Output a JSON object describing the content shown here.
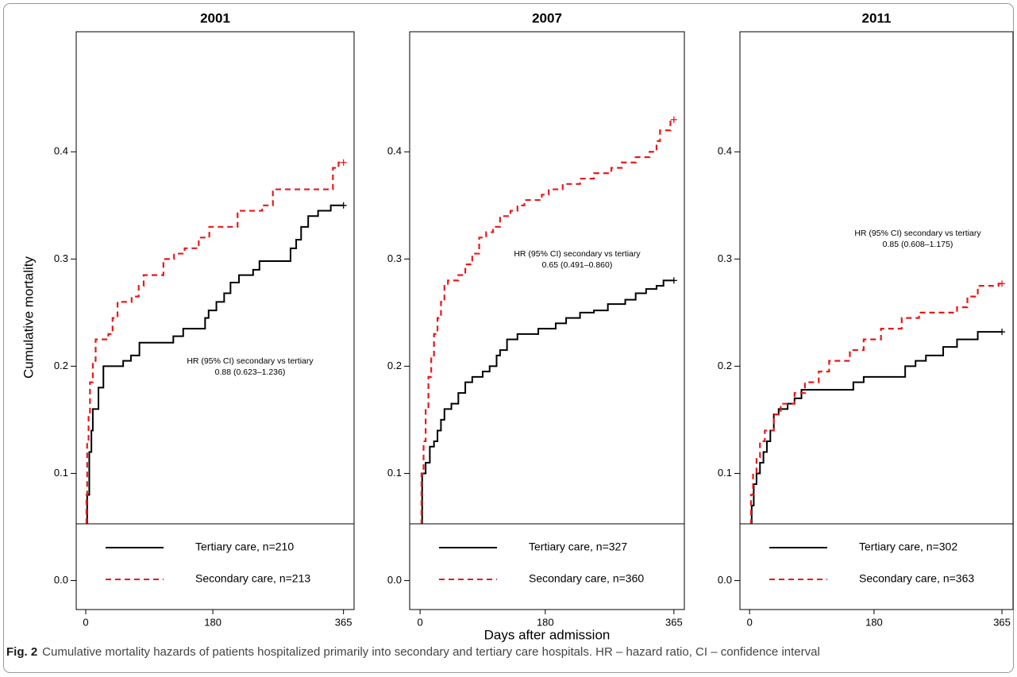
{
  "chart_data": [
    {
      "type": "line",
      "title": "2001",
      "ylabel": "Cumulative mortality",
      "xlim": [
        -13.5,
        380
      ],
      "ylim": [
        -0.027,
        0.512
      ],
      "xticks": [
        0,
        180,
        365
      ],
      "yticks": [
        {
          "value": 0,
          "label": "0.0"
        },
        0.1,
        0.2,
        0.3,
        0.4
      ],
      "annotation": [
        "HR (95% CI) secondary vs tertiary",
        "0.88 (0.623–1.236)"
      ],
      "legend": "bottom",
      "step": true,
      "series": [
        {
          "name": "Tertiary care, n=210",
          "color": "#000000",
          "linestyle": "solid",
          "x": [
            0,
            2,
            5,
            8,
            10,
            18,
            25,
            53,
            64,
            76,
            124,
            138,
            169,
            174,
            185,
            196,
            205,
            217,
            237,
            246,
            290,
            298,
            305,
            315,
            329,
            347,
            365
          ],
          "values": [
            0,
            0.08,
            0.12,
            0.14,
            0.16,
            0.18,
            0.2,
            0.205,
            0.21,
            0.222,
            0.228,
            0.235,
            0.245,
            0.252,
            0.26,
            0.268,
            0.278,
            0.285,
            0.29,
            0.298,
            0.31,
            0.318,
            0.33,
            0.34,
            0.345,
            0.35,
            0.35
          ]
        },
        {
          "name": "Secondary care, n=213",
          "color": "#e8191b",
          "linestyle": "dashed",
          "x": [
            0,
            1,
            2,
            4,
            6,
            10,
            14,
            32,
            38,
            45,
            65,
            75,
            82,
            110,
            125,
            140,
            160,
            175,
            215,
            250,
            265,
            350,
            358,
            365
          ],
          "values": [
            0,
            0.08,
            0.13,
            0.155,
            0.185,
            0.205,
            0.225,
            0.23,
            0.245,
            0.26,
            0.265,
            0.275,
            0.285,
            0.3,
            0.305,
            0.31,
            0.32,
            0.33,
            0.345,
            0.35,
            0.365,
            0.385,
            0.39,
            0.39
          ]
        }
      ]
    },
    {
      "type": "line",
      "title": "2007",
      "xlabel": "Days after admission",
      "xlim": [
        -15,
        380
      ],
      "ylim": [
        -0.027,
        0.512
      ],
      "xticks": [
        0,
        180,
        365
      ],
      "yticks": [
        {
          "value": 0,
          "label": "0.0"
        },
        0.1,
        0.2,
        0.3,
        0.4
      ],
      "annotation": [
        "HR (95% CI) secondary vs tertiary",
        "0.65 (0.491–0.860)"
      ],
      "legend": "bottom",
      "step": true,
      "series": [
        {
          "name": "Tertiary care, n=327",
          "color": "#000000",
          "linestyle": "solid",
          "x": [
            0,
            3,
            8,
            14,
            20,
            25,
            30,
            35,
            45,
            55,
            65,
            75,
            90,
            100,
            110,
            115,
            125,
            140,
            170,
            195,
            210,
            230,
            250,
            270,
            295,
            310,
            325,
            340,
            350,
            365
          ],
          "values": [
            0,
            0.1,
            0.11,
            0.125,
            0.13,
            0.14,
            0.15,
            0.16,
            0.165,
            0.175,
            0.185,
            0.19,
            0.195,
            0.2,
            0.21,
            0.215,
            0.225,
            0.23,
            0.235,
            0.24,
            0.245,
            0.25,
            0.252,
            0.258,
            0.262,
            0.268,
            0.272,
            0.275,
            0.28,
            0.28
          ]
        },
        {
          "name": "Secondary care, n=360",
          "color": "#e8191b",
          "linestyle": "dashed",
          "x": [
            0,
            2,
            5,
            8,
            12,
            16,
            20,
            25,
            30,
            35,
            40,
            55,
            65,
            75,
            85,
            95,
            105,
            115,
            130,
            140,
            150,
            175,
            185,
            205,
            230,
            250,
            275,
            290,
            310,
            330,
            340,
            345,
            360,
            365
          ],
          "values": [
            0,
            0.1,
            0.13,
            0.16,
            0.19,
            0.21,
            0.23,
            0.245,
            0.26,
            0.275,
            0.28,
            0.285,
            0.295,
            0.305,
            0.32,
            0.325,
            0.33,
            0.34,
            0.345,
            0.35,
            0.355,
            0.36,
            0.365,
            0.37,
            0.375,
            0.38,
            0.385,
            0.39,
            0.395,
            0.4,
            0.41,
            0.42,
            0.43,
            0.43
          ]
        }
      ]
    },
    {
      "type": "line",
      "title": "2011",
      "xlim": [
        -14,
        381
      ],
      "ylim": [
        -0.027,
        0.512
      ],
      "xticks": [
        0,
        180,
        365
      ],
      "yticks": [
        {
          "value": 0,
          "label": "0.0"
        },
        0.1,
        0.2,
        0.3,
        0.4
      ],
      "annotation": [
        "HR (95% CI) secondary vs tertiary",
        "0.85 (0.608–1.175)"
      ],
      "legend": "bottom",
      "step": true,
      "series": [
        {
          "name": "Tertiary care, n=302",
          "color": "#000000",
          "linestyle": "solid",
          "x": [
            0,
            3,
            6,
            10,
            15,
            20,
            25,
            30,
            35,
            42,
            55,
            65,
            75,
            150,
            165,
            225,
            240,
            255,
            280,
            300,
            330,
            365
          ],
          "values": [
            0,
            0.07,
            0.09,
            0.1,
            0.11,
            0.12,
            0.13,
            0.14,
            0.155,
            0.16,
            0.165,
            0.17,
            0.178,
            0.185,
            0.19,
            0.2,
            0.205,
            0.21,
            0.218,
            0.225,
            0.232,
            0.232
          ]
        },
        {
          "name": "Secondary care, n=363",
          "color": "#e8191b",
          "linestyle": "dashed",
          "x": [
            0,
            2,
            5,
            10,
            15,
            22,
            35,
            45,
            65,
            80,
            100,
            115,
            145,
            165,
            190,
            220,
            245,
            300,
            315,
            330,
            360,
            365
          ],
          "values": [
            0,
            0.08,
            0.1,
            0.115,
            0.13,
            0.14,
            0.155,
            0.165,
            0.175,
            0.185,
            0.195,
            0.205,
            0.215,
            0.225,
            0.235,
            0.245,
            0.25,
            0.255,
            0.265,
            0.275,
            0.277,
            0.277
          ]
        }
      ]
    }
  ],
  "caption": {
    "label": "Fig. 2",
    "text": "Cumulative mortality hazards of patients hospitalized primarily into secondary and tertiary care hospitals. HR – hazard ratio, CI – confidence interval"
  }
}
